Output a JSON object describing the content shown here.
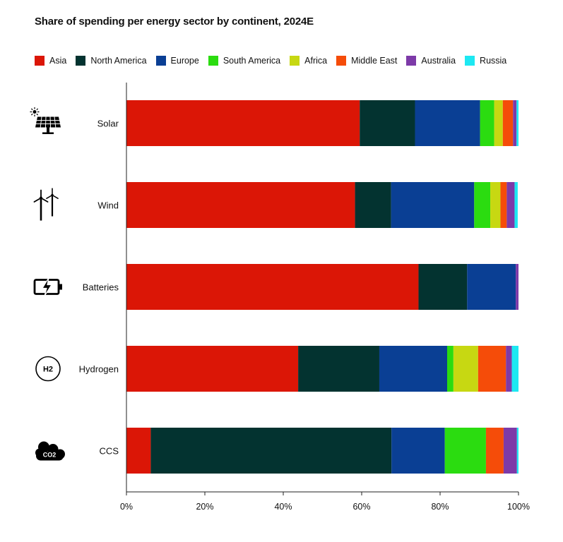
{
  "chart_data": {
    "type": "bar",
    "orientation": "horizontal",
    "stacked": true,
    "title": "Share of spending per energy sector by continent, 2024E",
    "categories": [
      "Solar",
      "Wind",
      "Batteries",
      "Hydrogen",
      "CCS"
    ],
    "category_icons": [
      "solar-panel-icon",
      "wind-turbine-icon",
      "battery-icon",
      "hydrogen-icon",
      "co2-cloud-icon"
    ],
    "hydrogen_icon_text": "H2",
    "co2_icon_text": "CO2",
    "series": [
      {
        "name": "Asia",
        "color": "#db1606",
        "values": [
          59.5,
          58.3,
          74.5,
          43.8,
          6.2
        ]
      },
      {
        "name": "North America",
        "color": "#033330",
        "values": [
          14.1,
          9.2,
          12.4,
          20.7,
          61.4
        ]
      },
      {
        "name": "Europe",
        "color": "#0a3f94",
        "values": [
          16.6,
          21.2,
          12.4,
          17.3,
          13.6
        ]
      },
      {
        "name": "South America",
        "color": "#2bdc10",
        "values": [
          3.6,
          4.1,
          0,
          1.6,
          10.5
        ]
      },
      {
        "name": "Africa",
        "color": "#c7d812",
        "values": [
          2.2,
          2.6,
          0,
          6.3,
          0
        ]
      },
      {
        "name": "Middle East",
        "color": "#f54c09",
        "values": [
          2.6,
          1.6,
          0,
          7.1,
          4.5
        ]
      },
      {
        "name": "Australia",
        "color": "#7d3aa8",
        "values": [
          0.9,
          2.0,
          0.7,
          1.5,
          3.4
        ]
      },
      {
        "name": "Russia",
        "color": "#1de8f2",
        "values": [
          0.5,
          0.8,
          0,
          1.7,
          0.4
        ]
      }
    ],
    "xlim": [
      0,
      100
    ],
    "xticks": [
      "0%",
      "20%",
      "40%",
      "60%",
      "80%",
      "100%"
    ],
    "xlabel": "",
    "ylabel": "",
    "legend_position": "top",
    "grid": false
  }
}
